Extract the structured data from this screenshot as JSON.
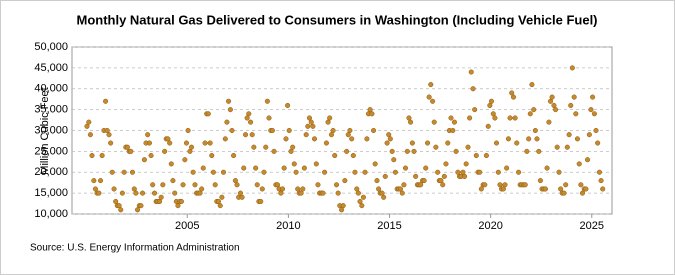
{
  "chart_data": {
    "type": "scatter",
    "title": "Monthly Natural Gas Delivered to Consumers in Washington (Including Vehicle Fuel)",
    "y_label": "Million Cubic Feet",
    "source": "Source: U.S. Energy Information Administration",
    "color": "#c68a2d",
    "grid": true,
    "xlim": [
      1999.3,
      2026.0
    ],
    "xticks": [
      2005,
      2010,
      2015,
      2020,
      2025
    ],
    "ylim": [
      10000,
      50000
    ],
    "yticks": [
      {
        "value": 10000,
        "label": "10,000"
      },
      {
        "value": 15000,
        "label": "15,000"
      },
      {
        "value": 20000,
        "label": "20,000"
      },
      {
        "value": 25000,
        "label": "25,000"
      },
      {
        "value": 30000,
        "label": "30,000"
      },
      {
        "value": 35000,
        "label": "35,000"
      },
      {
        "value": 40000,
        "label": "40,000"
      },
      {
        "value": 45000,
        "label": "45,000"
      },
      {
        "value": 50000,
        "label": "50,000"
      }
    ],
    "x": [
      2000.04,
      2000.13,
      2000.21,
      2000.29,
      2000.38,
      2000.46,
      2000.54,
      2000.63,
      2000.71,
      2000.79,
      2000.88,
      2000.96,
      2001.04,
      2001.13,
      2001.21,
      2001.29,
      2001.38,
      2001.46,
      2001.54,
      2001.63,
      2001.71,
      2001.79,
      2001.88,
      2001.96,
      2002.04,
      2002.13,
      2002.21,
      2002.29,
      2002.38,
      2002.46,
      2002.54,
      2002.63,
      2002.71,
      2002.79,
      2002.88,
      2002.96,
      2003.04,
      2003.13,
      2003.21,
      2003.29,
      2003.38,
      2003.46,
      2003.54,
      2003.63,
      2003.71,
      2003.79,
      2003.88,
      2003.96,
      2004.04,
      2004.13,
      2004.21,
      2004.29,
      2004.38,
      2004.46,
      2004.54,
      2004.63,
      2004.71,
      2004.79,
      2004.88,
      2004.96,
      2005.04,
      2005.13,
      2005.21,
      2005.29,
      2005.38,
      2005.46,
      2005.54,
      2005.63,
      2005.71,
      2005.79,
      2005.88,
      2005.96,
      2006.04,
      2006.13,
      2006.21,
      2006.29,
      2006.38,
      2006.46,
      2006.54,
      2006.63,
      2006.71,
      2006.79,
      2006.88,
      2006.96,
      2007.04,
      2007.13,
      2007.21,
      2007.29,
      2007.38,
      2007.46,
      2007.54,
      2007.63,
      2007.71,
      2007.79,
      2007.88,
      2007.96,
      2008.04,
      2008.13,
      2008.21,
      2008.29,
      2008.38,
      2008.46,
      2008.54,
      2008.63,
      2008.71,
      2008.79,
      2008.88,
      2008.96,
      2009.04,
      2009.13,
      2009.21,
      2009.29,
      2009.38,
      2009.46,
      2009.54,
      2009.63,
      2009.71,
      2009.79,
      2009.88,
      2009.96,
      2010.04,
      2010.13,
      2010.21,
      2010.29,
      2010.38,
      2010.46,
      2010.54,
      2010.63,
      2010.71,
      2010.79,
      2010.88,
      2010.96,
      2011.04,
      2011.13,
      2011.21,
      2011.29,
      2011.38,
      2011.46,
      2011.54,
      2011.63,
      2011.71,
      2011.79,
      2011.88,
      2011.96,
      2012.04,
      2012.13,
      2012.21,
      2012.29,
      2012.38,
      2012.46,
      2012.54,
      2012.63,
      2012.71,
      2012.79,
      2012.88,
      2012.96,
      2013.04,
      2013.13,
      2013.21,
      2013.29,
      2013.38,
      2013.46,
      2013.54,
      2013.63,
      2013.71,
      2013.79,
      2013.88,
      2013.96,
      2014.04,
      2014.13,
      2014.21,
      2014.29,
      2014.38,
      2014.46,
      2014.54,
      2014.63,
      2014.71,
      2014.79,
      2014.88,
      2014.96,
      2015.04,
      2015.13,
      2015.21,
      2015.29,
      2015.38,
      2015.46,
      2015.54,
      2015.63,
      2015.71,
      2015.79,
      2015.88,
      2015.96,
      2016.04,
      2016.13,
      2016.21,
      2016.29,
      2016.38,
      2016.46,
      2016.54,
      2016.63,
      2016.71,
      2016.79,
      2016.88,
      2016.96,
      2017.04,
      2017.13,
      2017.21,
      2017.29,
      2017.38,
      2017.46,
      2017.54,
      2017.63,
      2017.71,
      2017.79,
      2017.88,
      2017.96,
      2018.04,
      2018.13,
      2018.21,
      2018.29,
      2018.38,
      2018.46,
      2018.54,
      2018.63,
      2018.71,
      2018.79,
      2018.88,
      2018.96,
      2019.04,
      2019.13,
      2019.21,
      2019.29,
      2019.38,
      2019.46,
      2019.54,
      2019.63,
      2019.71,
      2019.79,
      2019.88,
      2019.96,
      2020.04,
      2020.13,
      2020.21,
      2020.29,
      2020.38,
      2020.46,
      2020.54,
      2020.63,
      2020.71,
      2020.79,
      2020.88,
      2020.96,
      2021.04,
      2021.13,
      2021.21,
      2021.29,
      2021.38,
      2021.46,
      2021.54,
      2021.63,
      2021.71,
      2021.79,
      2021.88,
      2021.96,
      2022.04,
      2022.13,
      2022.21,
      2022.29,
      2022.38,
      2022.46,
      2022.54,
      2022.63,
      2022.71,
      2022.79,
      2022.88,
      2022.96,
      2023.04,
      2023.13,
      2023.21,
      2023.29,
      2023.38,
      2023.46,
      2023.54,
      2023.63,
      2023.71,
      2023.79,
      2023.88,
      2023.96,
      2024.04,
      2024.13,
      2024.21,
      2024.29,
      2024.38,
      2024.46,
      2024.54,
      2024.63,
      2024.71,
      2024.79,
      2024.88,
      2024.96,
      2025.04,
      2025.13,
      2025.21,
      2025.29,
      2025.38,
      2025.46,
      2025.54
    ],
    "values": [
      31000,
      32000,
      29000,
      24000,
      18000,
      16000,
      15000,
      15000,
      18000,
      24000,
      30000,
      37000,
      30000,
      29000,
      27000,
      20000,
      16000,
      13000,
      12000,
      12000,
      11000,
      15000,
      20000,
      26000,
      26000,
      25000,
      25000,
      20000,
      16000,
      15000,
      11000,
      12000,
      12000,
      15000,
      23000,
      27000,
      29000,
      27000,
      24000,
      17000,
      15000,
      13000,
      13000,
      13000,
      14000,
      17000,
      25000,
      28000,
      28000,
      27000,
      22000,
      18000,
      15000,
      13000,
      12000,
      13000,
      13000,
      17000,
      23000,
      27000,
      30000,
      25000,
      26000,
      20000,
      17000,
      15000,
      15000,
      15000,
      16000,
      21000,
      27000,
      34000,
      34000,
      27000,
      24000,
      20000,
      17000,
      13000,
      13000,
      12000,
      14000,
      20000,
      28000,
      32000,
      37000,
      35000,
      30000,
      24000,
      18000,
      17000,
      14000,
      15000,
      14000,
      21000,
      29000,
      33000,
      34000,
      32000,
      29000,
      26000,
      21000,
      17000,
      13000,
      13000,
      16000,
      20000,
      26000,
      37000,
      33000,
      30000,
      30000,
      25000,
      17000,
      17000,
      16000,
      15000,
      16000,
      21000,
      28000,
      36000,
      30000,
      25000,
      26000,
      22000,
      20000,
      16000,
      15000,
      15000,
      16000,
      21000,
      29000,
      31000,
      33000,
      32000,
      31000,
      28000,
      22000,
      17000,
      15000,
      15000,
      15000,
      20000,
      27000,
      32000,
      33000,
      29000,
      30000,
      24000,
      17000,
      15000,
      12000,
      11000,
      12000,
      18000,
      25000,
      29000,
      30000,
      28000,
      24000,
      20000,
      16000,
      15000,
      13000,
      12000,
      14000,
      20000,
      28000,
      34000,
      35000,
      34000,
      30000,
      22000,
      18000,
      16000,
      15000,
      15000,
      14000,
      19000,
      27000,
      29000,
      28000,
      25000,
      23000,
      20000,
      16000,
      16000,
      16000,
      15000,
      17000,
      21000,
      25000,
      33000,
      32000,
      27000,
      25000,
      19000,
      17000,
      17000,
      17000,
      18000,
      18000,
      21000,
      27000,
      38000,
      41000,
      37000,
      32000,
      26000,
      20000,
      18000,
      18000,
      17000,
      19000,
      22000,
      27000,
      30000,
      33000,
      30000,
      32000,
      25000,
      20000,
      19000,
      19000,
      20000,
      19000,
      22000,
      26000,
      33000,
      44000,
      40000,
      35000,
      24000,
      20000,
      20000,
      16000,
      17000,
      17000,
      24000,
      31000,
      36000,
      37000,
      34000,
      33000,
      27000,
      20000,
      17000,
      16000,
      16000,
      17000,
      21000,
      28000,
      33000,
      39000,
      38000,
      33000,
      27000,
      20000,
      17000,
      17000,
      17000,
      17000,
      25000,
      28000,
      34000,
      41000,
      35000,
      30000,
      28000,
      25000,
      18000,
      16000,
      16000,
      16000,
      21000,
      32000,
      37000,
      38000,
      36000,
      35000,
      26000,
      20000,
      16000,
      15000,
      15000,
      17000,
      26000,
      29000,
      36000,
      45000,
      38000,
      34000,
      28000,
      22000,
      17000,
      15000,
      16000,
      16000,
      23000,
      29000,
      35000,
      38000,
      34000,
      30000,
      27000,
      20000,
      18000,
      16000
    ]
  }
}
